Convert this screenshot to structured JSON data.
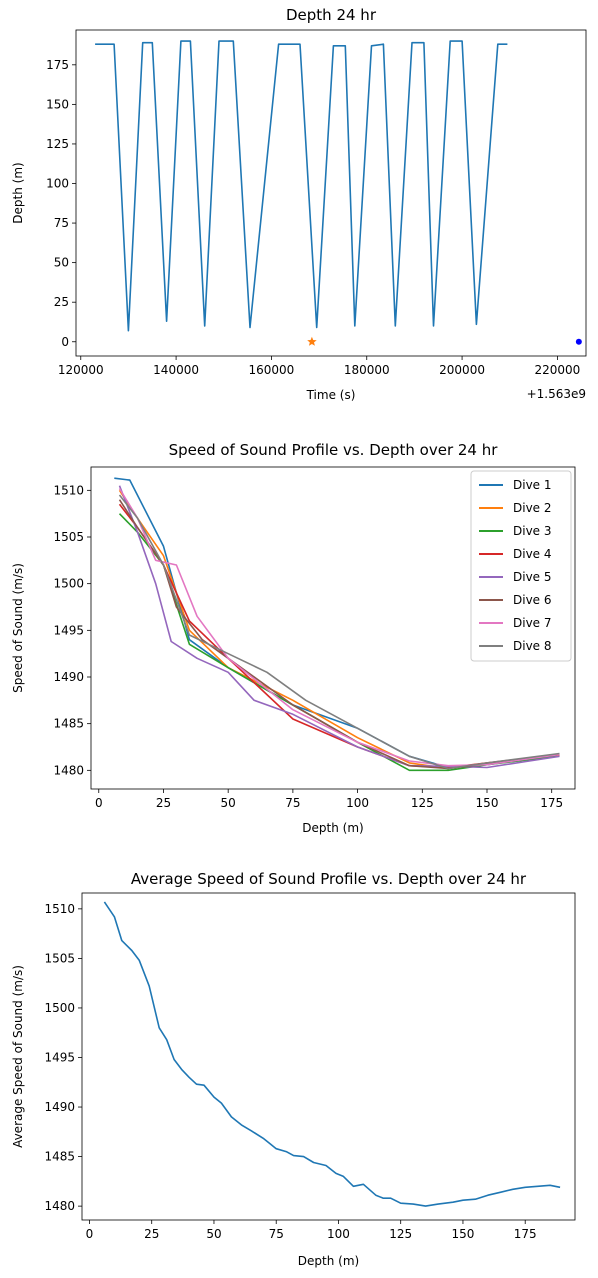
{
  "chart_data": [
    {
      "type": "line",
      "title": "Depth 24 hr",
      "xlabel": "Time (s)",
      "ylabel": "Depth (m)",
      "x_offset_label": "+1.563e9",
      "xlim": [
        119000,
        226000
      ],
      "ylim": [
        -9,
        197
      ],
      "xticks": [
        120000,
        140000,
        160000,
        180000,
        200000,
        220000
      ],
      "yticks": [
        0,
        25,
        50,
        75,
        100,
        125,
        150,
        175
      ],
      "series": [
        {
          "color": "#1f77b4",
          "points": [
            [
              123000,
              188
            ],
            [
              127000,
              188
            ],
            [
              130000,
              7
            ],
            [
              133000,
              189
            ],
            [
              135000,
              189
            ],
            [
              138000,
              13
            ],
            [
              141000,
              190
            ],
            [
              143000,
              190
            ],
            [
              146000,
              10
            ],
            [
              149000,
              190
            ],
            [
              152000,
              190
            ],
            [
              155500,
              9
            ],
            [
              161500,
              188
            ],
            [
              166000,
              188
            ],
            [
              169500,
              9
            ],
            [
              173000,
              187
            ],
            [
              175500,
              187
            ],
            [
              177500,
              10
            ],
            [
              181000,
              187
            ],
            [
              183500,
              188
            ],
            [
              186000,
              10
            ],
            [
              189500,
              189
            ],
            [
              192000,
              189
            ],
            [
              194000,
              10
            ],
            [
              197500,
              190
            ],
            [
              200000,
              190
            ],
            [
              203000,
              11
            ],
            [
              207500,
              188
            ],
            [
              209500,
              188
            ]
          ]
        }
      ],
      "markers": [
        {
          "shape": "star",
          "x": 168500,
          "y": 0,
          "color": "#ff7f0e"
        },
        {
          "shape": "dot",
          "x": 224500,
          "y": 0,
          "color": "#0000ff"
        }
      ]
    },
    {
      "type": "line",
      "title": "Speed of Sound Profile vs. Depth over 24 hr",
      "xlabel": "Depth (m)",
      "ylabel": "Speed of Sound (m/s)",
      "xlim": [
        -3,
        184
      ],
      "ylim": [
        1478.0,
        1512.5
      ],
      "xticks": [
        0,
        25,
        50,
        75,
        100,
        125,
        150,
        175
      ],
      "yticks": [
        1480,
        1485,
        1490,
        1495,
        1500,
        1505,
        1510
      ],
      "legend": "top-right",
      "series": [
        {
          "name": "Dive 1",
          "color": "#1f77b4",
          "points": [
            [
              6,
              1511.3
            ],
            [
              12,
              1511.1
            ],
            [
              25,
              1504
            ],
            [
              35,
              1494
            ],
            [
              50,
              1491
            ],
            [
              75,
              1487
            ],
            [
              100,
              1484.5
            ],
            [
              120,
              1481.5
            ],
            [
              135,
              1480.3
            ],
            [
              150,
              1480.6
            ],
            [
              178,
              1481.6
            ]
          ]
        },
        {
          "name": "Dive 2",
          "color": "#ff7f0e",
          "points": [
            [
              8,
              1510
            ],
            [
              15,
              1507
            ],
            [
              25,
              1503
            ],
            [
              35,
              1495
            ],
            [
              50,
              1491
            ],
            [
              75,
              1487.5
            ],
            [
              100,
              1483.5
            ],
            [
              120,
              1480.8
            ],
            [
              135,
              1480.2
            ],
            [
              150,
              1480.8
            ],
            [
              178,
              1481.6
            ]
          ]
        },
        {
          "name": "Dive 3",
          "color": "#2ca02c",
          "points": [
            [
              8,
              1507.5
            ],
            [
              15,
              1505.5
            ],
            [
              25,
              1502
            ],
            [
              35,
              1493.5
            ],
            [
              50,
              1491
            ],
            [
              75,
              1487
            ],
            [
              100,
              1483
            ],
            [
              120,
              1480
            ],
            [
              135,
              1480
            ],
            [
              150,
              1480.6
            ],
            [
              177,
              1481.5
            ]
          ]
        },
        {
          "name": "Dive 4",
          "color": "#d62728",
          "points": [
            [
              8,
              1508.5
            ],
            [
              15,
              1506
            ],
            [
              25,
              1502
            ],
            [
              35,
              1496
            ],
            [
              50,
              1492
            ],
            [
              75,
              1485.5
            ],
            [
              100,
              1482.5
            ],
            [
              120,
              1480.5
            ],
            [
              135,
              1480.3
            ],
            [
              150,
              1480.8
            ],
            [
              178,
              1481.7
            ]
          ]
        },
        {
          "name": "Dive 5",
          "color": "#9467bd",
          "points": [
            [
              8,
              1510.5
            ],
            [
              15,
              1505.5
            ],
            [
              22,
              1500
            ],
            [
              28,
              1493.8
            ],
            [
              38,
              1492
            ],
            [
              50,
              1490.5
            ],
            [
              60,
              1487.5
            ],
            [
              75,
              1486
            ],
            [
              100,
              1482.5
            ],
            [
              120,
              1480.5
            ],
            [
              140,
              1480.4
            ],
            [
              150,
              1480.3
            ],
            [
              178,
              1481.5
            ]
          ]
        },
        {
          "name": "Dive 6",
          "color": "#8c564b",
          "points": [
            [
              8,
              1509
            ],
            [
              15,
              1506
            ],
            [
              25,
              1502
            ],
            [
              30,
              1497.5
            ],
            [
              40,
              1494
            ],
            [
              50,
              1492
            ],
            [
              75,
              1487
            ],
            [
              100,
              1483
            ],
            [
              120,
              1480.5
            ],
            [
              135,
              1480.2
            ],
            [
              150,
              1480.7
            ],
            [
              178,
              1481.7
            ]
          ]
        },
        {
          "name": "Dive 7",
          "color": "#e377c2",
          "points": [
            [
              8,
              1510.2
            ],
            [
              15,
              1507
            ],
            [
              22,
              1502.5
            ],
            [
              30,
              1502
            ],
            [
              38,
              1496.5
            ],
            [
              50,
              1492
            ],
            [
              75,
              1486.5
            ],
            [
              100,
              1483
            ],
            [
              120,
              1481
            ],
            [
              135,
              1480.5
            ],
            [
              150,
              1480.6
            ],
            [
              178,
              1481.7
            ]
          ]
        },
        {
          "name": "Dive 8",
          "color": "#7f7f7f",
          "points": [
            [
              8,
              1509.5
            ],
            [
              15,
              1507
            ],
            [
              25,
              1502
            ],
            [
              35,
              1494.5
            ],
            [
              50,
              1492.5
            ],
            [
              65,
              1490.5
            ],
            [
              80,
              1487.5
            ],
            [
              100,
              1484.5
            ],
            [
              120,
              1481.5
            ],
            [
              135,
              1480.2
            ],
            [
              150,
              1480.8
            ],
            [
              178,
              1481.8
            ]
          ]
        }
      ]
    },
    {
      "type": "line",
      "title": "Average Speed of Sound Profile vs. Depth over 24 hr",
      "xlabel": "Depth (m)",
      "ylabel": "Average Speed of Sound (m/s)",
      "xlim": [
        -3,
        195
      ],
      "ylim": [
        1478.6,
        1511.6
      ],
      "xticks": [
        0,
        25,
        50,
        75,
        100,
        125,
        150,
        175
      ],
      "yticks": [
        1480,
        1485,
        1490,
        1495,
        1500,
        1505,
        1510
      ],
      "series": [
        {
          "color": "#1f77b4",
          "points": [
            [
              6,
              1510.7
            ],
            [
              10,
              1509.2
            ],
            [
              13,
              1506.8
            ],
            [
              17,
              1505.8
            ],
            [
              20,
              1504.8
            ],
            [
              24,
              1502.2
            ],
            [
              28,
              1498.0
            ],
            [
              31,
              1496.8
            ],
            [
              34,
              1494.8
            ],
            [
              37,
              1493.8
            ],
            [
              40,
              1493.0
            ],
            [
              43,
              1492.3
            ],
            [
              46,
              1492.2
            ],
            [
              50,
              1491.0
            ],
            [
              53,
              1490.4
            ],
            [
              57,
              1489.0
            ],
            [
              61,
              1488.2
            ],
            [
              65,
              1487.6
            ],
            [
              70,
              1486.8
            ],
            [
              75,
              1485.8
            ],
            [
              79,
              1485.5
            ],
            [
              82,
              1485.1
            ],
            [
              86,
              1485.0
            ],
            [
              90,
              1484.4
            ],
            [
              95,
              1484.1
            ],
            [
              99,
              1483.3
            ],
            [
              102,
              1483.0
            ],
            [
              106,
              1482.0
            ],
            [
              110,
              1482.2
            ],
            [
              115,
              1481.1
            ],
            [
              118,
              1480.8
            ],
            [
              121,
              1480.8
            ],
            [
              125,
              1480.3
            ],
            [
              130,
              1480.2
            ],
            [
              135,
              1480.0
            ],
            [
              140,
              1480.2
            ],
            [
              146,
              1480.4
            ],
            [
              150,
              1480.6
            ],
            [
              155,
              1480.7
            ],
            [
              160,
              1481.1
            ],
            [
              165,
              1481.4
            ],
            [
              170,
              1481.7
            ],
            [
              175,
              1481.9
            ],
            [
              180,
              1482.0
            ],
            [
              185,
              1482.1
            ],
            [
              189,
              1481.9
            ]
          ]
        }
      ]
    }
  ]
}
